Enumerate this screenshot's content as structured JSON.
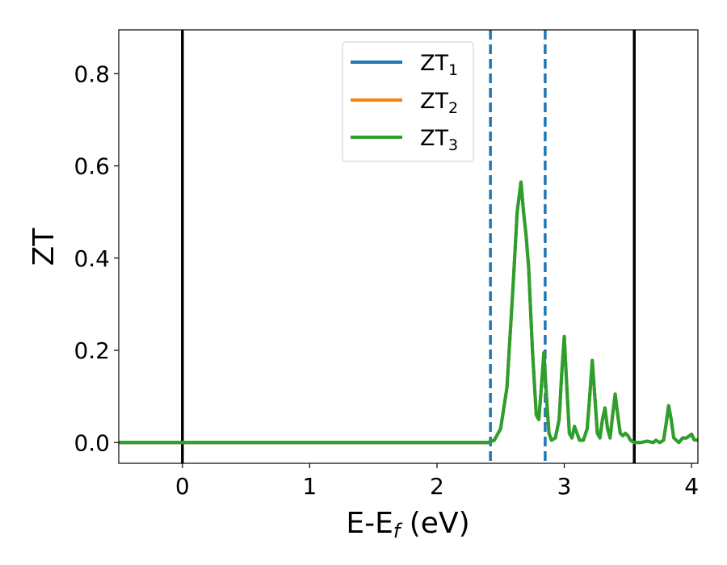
{
  "chart_data": {
    "type": "line",
    "xlabel_main": "E-E",
    "xlabel_sub": "f",
    "xlabel_unit": " (eV)",
    "ylabel": "ZT",
    "xlim": [
      -0.5,
      4.05
    ],
    "ylim": [
      -0.045,
      0.895
    ],
    "xticks": [
      0,
      1,
      2,
      3,
      4
    ],
    "yticks": [
      0.0,
      0.2,
      0.4,
      0.6,
      0.8
    ],
    "xtick_labels": [
      "0",
      "1",
      "2",
      "3",
      "4"
    ],
    "ytick_labels": [
      "0.0",
      "0.2",
      "0.4",
      "0.6",
      "0.8"
    ],
    "grid": false,
    "legend": {
      "position": "top-center",
      "entries": [
        {
          "base": "ZT",
          "sub": "1",
          "color": "#1f77b4"
        },
        {
          "base": "ZT",
          "sub": "2",
          "color": "#ff7f0e"
        },
        {
          "base": "ZT",
          "sub": "3",
          "color": "#2ca02c"
        }
      ]
    },
    "vlines": [
      {
        "x": 0.0,
        "style": "solid",
        "color": "#000000"
      },
      {
        "x": 3.55,
        "style": "solid",
        "color": "#000000"
      },
      {
        "x": 2.42,
        "style": "dashed",
        "color": "#1f77b4"
      },
      {
        "x": 2.85,
        "style": "dashed",
        "color": "#1f77b4"
      }
    ],
    "series": [
      {
        "name": "ZT_1",
        "color": "#1f77b4",
        "x": [
          -0.5,
          0.0,
          1.0,
          2.0,
          2.3,
          2.4,
          2.45,
          2.5,
          2.55,
          2.6,
          2.63,
          2.66,
          2.68,
          2.7,
          2.72,
          2.75,
          2.78,
          2.8,
          2.82,
          2.84,
          2.86,
          2.88,
          2.9,
          2.93,
          2.96,
          2.98,
          3.0,
          3.02,
          3.04,
          3.06,
          3.08,
          3.1,
          3.12,
          3.15,
          3.18,
          3.2,
          3.22,
          3.24,
          3.26,
          3.28,
          3.3,
          3.32,
          3.34,
          3.36,
          3.38,
          3.4,
          3.42,
          3.44,
          3.46,
          3.48,
          3.5,
          3.52,
          3.55,
          3.6,
          3.65,
          3.7,
          3.72,
          3.75,
          3.78,
          3.8,
          3.82,
          3.84,
          3.86,
          3.88,
          3.9,
          3.93,
          3.96,
          4.0,
          4.02,
          4.05
        ],
        "y": [
          0.0,
          0.0,
          0.0,
          0.0,
          0.0,
          0.0,
          0.005,
          0.03,
          0.12,
          0.35,
          0.5,
          0.565,
          0.5,
          0.45,
          0.38,
          0.2,
          0.06,
          0.05,
          0.12,
          0.195,
          0.1,
          0.02,
          0.005,
          0.01,
          0.05,
          0.15,
          0.23,
          0.12,
          0.02,
          0.01,
          0.035,
          0.02,
          0.005,
          0.005,
          0.03,
          0.1,
          0.178,
          0.1,
          0.02,
          0.01,
          0.05,
          0.075,
          0.03,
          0.01,
          0.06,
          0.105,
          0.06,
          0.02,
          0.015,
          0.02,
          0.015,
          0.005,
          0.0,
          0.0,
          0.003,
          0.0,
          0.005,
          0.0,
          0.005,
          0.04,
          0.08,
          0.05,
          0.01,
          0.005,
          0.0,
          0.01,
          0.01,
          0.018,
          0.006,
          0.005
        ]
      },
      {
        "name": "ZT_2",
        "color": "#ff7f0e",
        "x": [
          -0.5,
          0.0,
          1.0,
          2.0,
          2.3,
          2.4,
          2.45,
          2.5,
          2.55,
          2.6,
          2.63,
          2.66,
          2.68,
          2.7,
          2.72,
          2.75,
          2.78,
          2.8,
          2.82,
          2.84,
          2.86,
          2.88,
          2.9,
          2.93,
          2.96,
          2.98,
          3.0,
          3.02,
          3.04,
          3.06,
          3.08,
          3.1,
          3.12,
          3.15,
          3.18,
          3.2,
          3.22,
          3.24,
          3.26,
          3.28,
          3.3,
          3.32,
          3.34,
          3.36,
          3.38,
          3.4,
          3.42,
          3.44,
          3.46,
          3.48,
          3.5,
          3.52,
          3.55,
          3.6,
          3.65,
          3.7,
          3.72,
          3.75,
          3.78,
          3.8,
          3.82,
          3.84,
          3.86,
          3.88,
          3.9,
          3.93,
          3.96,
          4.0,
          4.02,
          4.05
        ],
        "y": [
          0.0,
          0.0,
          0.0,
          0.0,
          0.0,
          0.0,
          0.005,
          0.03,
          0.12,
          0.35,
          0.5,
          0.565,
          0.5,
          0.45,
          0.38,
          0.2,
          0.06,
          0.05,
          0.12,
          0.195,
          0.1,
          0.02,
          0.005,
          0.01,
          0.05,
          0.15,
          0.23,
          0.12,
          0.02,
          0.01,
          0.035,
          0.02,
          0.005,
          0.005,
          0.03,
          0.1,
          0.178,
          0.1,
          0.02,
          0.01,
          0.05,
          0.075,
          0.03,
          0.01,
          0.06,
          0.105,
          0.06,
          0.02,
          0.015,
          0.02,
          0.015,
          0.005,
          0.0,
          0.0,
          0.003,
          0.0,
          0.005,
          0.0,
          0.005,
          0.04,
          0.08,
          0.05,
          0.01,
          0.005,
          0.0,
          0.01,
          0.01,
          0.018,
          0.006,
          0.005
        ]
      },
      {
        "name": "ZT_3",
        "color": "#2ca02c",
        "x": [
          -0.5,
          0.0,
          1.0,
          2.0,
          2.3,
          2.4,
          2.45,
          2.5,
          2.55,
          2.6,
          2.63,
          2.66,
          2.68,
          2.7,
          2.72,
          2.75,
          2.78,
          2.8,
          2.82,
          2.84,
          2.86,
          2.88,
          2.9,
          2.93,
          2.96,
          2.98,
          3.0,
          3.02,
          3.04,
          3.06,
          3.08,
          3.1,
          3.12,
          3.15,
          3.18,
          3.2,
          3.22,
          3.24,
          3.26,
          3.28,
          3.3,
          3.32,
          3.34,
          3.36,
          3.38,
          3.4,
          3.42,
          3.44,
          3.46,
          3.48,
          3.5,
          3.52,
          3.55,
          3.6,
          3.65,
          3.7,
          3.72,
          3.75,
          3.78,
          3.8,
          3.82,
          3.84,
          3.86,
          3.88,
          3.9,
          3.93,
          3.96,
          4.0,
          4.02,
          4.05
        ],
        "y": [
          0.0,
          0.0,
          0.0,
          0.0,
          0.0,
          0.0,
          0.005,
          0.03,
          0.12,
          0.35,
          0.5,
          0.565,
          0.5,
          0.45,
          0.38,
          0.2,
          0.06,
          0.05,
          0.12,
          0.195,
          0.1,
          0.02,
          0.005,
          0.01,
          0.05,
          0.15,
          0.23,
          0.12,
          0.02,
          0.01,
          0.035,
          0.02,
          0.005,
          0.005,
          0.03,
          0.1,
          0.178,
          0.1,
          0.02,
          0.01,
          0.05,
          0.075,
          0.03,
          0.01,
          0.06,
          0.105,
          0.06,
          0.02,
          0.015,
          0.02,
          0.015,
          0.005,
          0.0,
          0.0,
          0.003,
          0.0,
          0.005,
          0.0,
          0.005,
          0.04,
          0.08,
          0.05,
          0.01,
          0.005,
          0.0,
          0.01,
          0.01,
          0.018,
          0.006,
          0.005
        ]
      }
    ]
  }
}
